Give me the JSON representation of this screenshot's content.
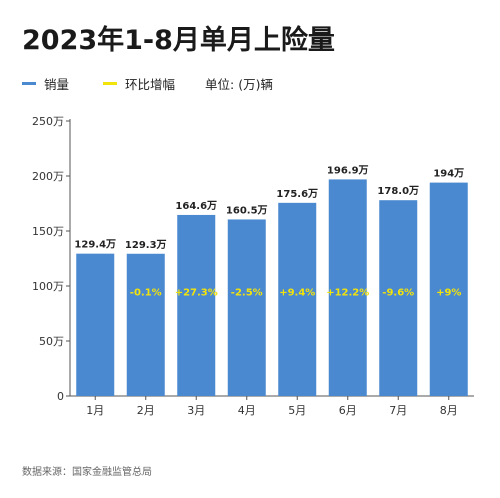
{
  "title": "2023年1-8月单月上险量",
  "legend": {
    "series_label": "销量",
    "ratio_label": "环比增幅",
    "unit": "单位: (万)辆"
  },
  "source": "数据来源：国家金融监管总局",
  "colors": {
    "bar": "#4a89d0",
    "ratio_text": "#f2e30b",
    "axis": "#555555",
    "grid": "#e6e6e6"
  },
  "chart_data": {
    "type": "bar",
    "categories": [
      "1月",
      "2月",
      "3月",
      "4月",
      "5月",
      "6月",
      "7月",
      "8月"
    ],
    "series": [
      {
        "name": "销量",
        "values": [
          129.4,
          129.3,
          164.6,
          160.5,
          175.6,
          196.9,
          178.0,
          194
        ],
        "labels": [
          "129.4万",
          "129.3万",
          "164.6万",
          "160.5万",
          "175.6万",
          "196.9万",
          "178.0万",
          "194万"
        ]
      }
    ],
    "mom_growth_labels": [
      "",
      "-0.1%",
      "+27.3%",
      "-2.5%",
      "+9.4%",
      "+12.2%",
      "-9.6%",
      "+9%"
    ],
    "y_ticks": [
      0,
      50,
      100,
      150,
      200,
      250
    ],
    "y_tick_labels": [
      "0",
      "50万",
      "100万",
      "150万",
      "200万",
      "250万"
    ],
    "ylim": [
      0,
      250
    ],
    "grid": false
  }
}
